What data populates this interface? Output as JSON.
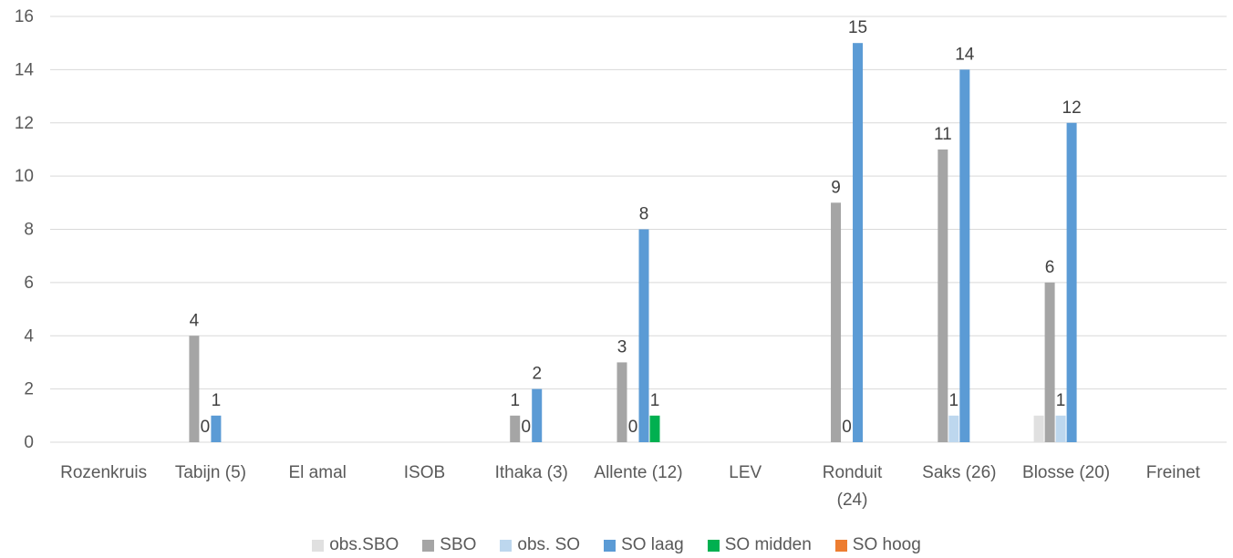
{
  "chart_data": {
    "type": "bar",
    "categories": [
      "Rozenkruis",
      "Tabijn (5)",
      "El amal",
      "ISOB",
      "Ithaka (3)",
      "Allente (12)",
      "LEV",
      "Ronduit (24)",
      "Saks (26)",
      "Blosse (20)",
      "Freinet"
    ],
    "series": [
      {
        "name": "obs.SBO",
        "color": "#e0e0e0",
        "values": [
          null,
          null,
          null,
          null,
          null,
          null,
          null,
          null,
          null,
          1,
          null
        ],
        "labels": [
          null,
          null,
          null,
          null,
          null,
          null,
          null,
          null,
          null,
          null,
          null
        ]
      },
      {
        "name": "SBO",
        "color": "#a5a5a5",
        "values": [
          null,
          4,
          null,
          null,
          1,
          3,
          null,
          9,
          11,
          6,
          null
        ],
        "labels": [
          null,
          "4",
          null,
          null,
          "1",
          "3",
          null,
          "9",
          "11",
          "6",
          null
        ]
      },
      {
        "name": "obs. SO",
        "color": "#bdd7ee",
        "values": [
          null,
          0,
          null,
          null,
          0,
          0,
          null,
          0,
          1,
          1,
          null
        ],
        "labels": [
          null,
          "0",
          null,
          null,
          "0",
          "0",
          null,
          "0",
          "1",
          "1",
          null
        ]
      },
      {
        "name": "SO laag",
        "color": "#5b9bd5",
        "values": [
          null,
          1,
          null,
          null,
          2,
          8,
          null,
          15,
          14,
          12,
          null
        ],
        "labels": [
          null,
          "1",
          null,
          null,
          "2",
          "8",
          null,
          "15",
          "14",
          "12",
          null
        ]
      },
      {
        "name": "SO midden",
        "color": "#00b050",
        "values": [
          null,
          null,
          null,
          null,
          null,
          1,
          null,
          null,
          null,
          null,
          null
        ],
        "labels": [
          null,
          null,
          null,
          null,
          null,
          "1",
          null,
          null,
          null,
          null,
          null
        ]
      },
      {
        "name": "SO hoog",
        "color": "#ed7d31",
        "values": [
          null,
          null,
          null,
          null,
          null,
          null,
          null,
          null,
          null,
          null,
          null
        ],
        "labels": [
          null,
          null,
          null,
          null,
          null,
          null,
          null,
          null,
          null,
          null,
          null
        ]
      }
    ],
    "yticks": [
      "0",
      "2",
      "4",
      "6",
      "8",
      "10",
      "12",
      "14",
      "16"
    ],
    "ylim": [
      0,
      16
    ],
    "grid": true,
    "legend_position": "bottom",
    "title": "",
    "xlabel": "",
    "ylabel": ""
  }
}
